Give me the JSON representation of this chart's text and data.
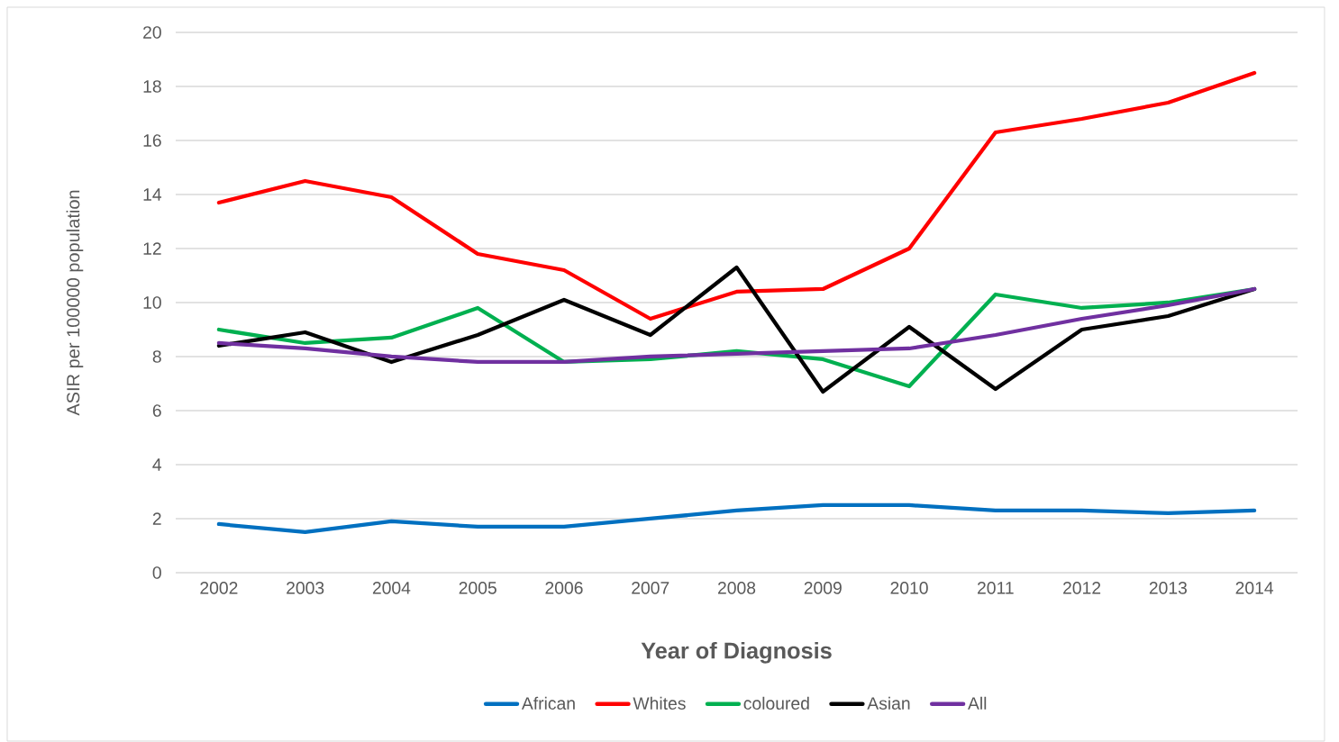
{
  "chart_data": {
    "type": "line",
    "xlabel": "Year of Diagnosis",
    "ylabel": "ASIR per 100000 population",
    "categories": [
      "2002",
      "2003",
      "2004",
      "2005",
      "2006",
      "2007",
      "2008",
      "2009",
      "2010",
      "2011",
      "2012",
      "2013",
      "2014"
    ],
    "series": [
      {
        "name": "African",
        "color": "#0070c0",
        "values": [
          1.8,
          1.5,
          1.9,
          1.7,
          1.7,
          2.0,
          2.3,
          2.5,
          2.5,
          2.3,
          2.3,
          2.2,
          2.3
        ]
      },
      {
        "name": "Whites",
        "color": "#ff0000",
        "values": [
          13.7,
          14.5,
          13.9,
          11.8,
          11.2,
          9.4,
          10.4,
          10.5,
          12.0,
          16.3,
          16.8,
          17.4,
          18.5
        ]
      },
      {
        "name": "coloured",
        "color": "#00b050",
        "values": [
          9.0,
          8.5,
          8.7,
          9.8,
          7.8,
          7.9,
          8.2,
          7.9,
          6.9,
          10.3,
          9.8,
          10.0,
          10.5
        ]
      },
      {
        "name": "Asian",
        "color": "#000000",
        "values": [
          8.4,
          8.9,
          7.8,
          8.8,
          10.1,
          8.8,
          11.3,
          6.7,
          9.1,
          6.8,
          9.0,
          9.5,
          10.5
        ]
      },
      {
        "name": "All",
        "color": "#7030a0",
        "values": [
          8.5,
          8.3,
          8.0,
          7.8,
          7.8,
          8.0,
          8.1,
          8.2,
          8.3,
          8.8,
          9.4,
          9.9,
          10.5
        ]
      }
    ],
    "ylim": [
      0,
      20
    ],
    "yticks": [
      0,
      2,
      4,
      6,
      8,
      10,
      12,
      14,
      16,
      18,
      20
    ],
    "grid": "y",
    "legend": "bottom"
  }
}
